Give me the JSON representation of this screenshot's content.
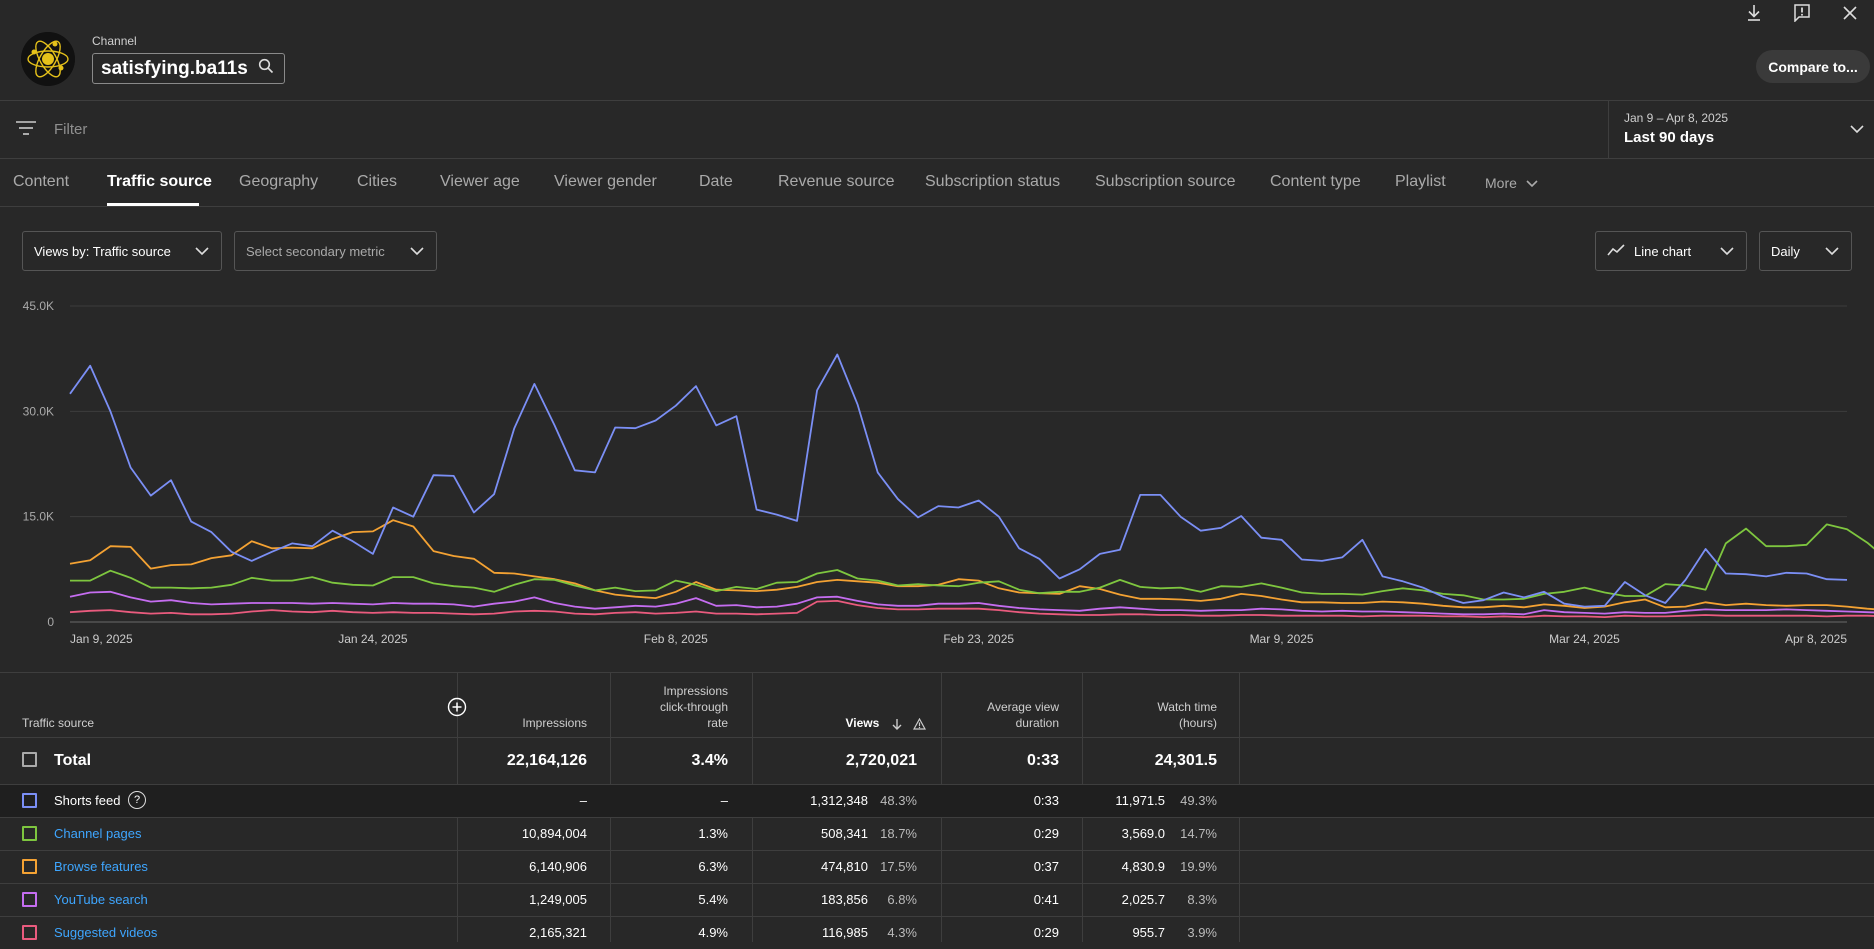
{
  "header": {
    "channel_label": "Channel",
    "channel_name": "satisfying.ba11s",
    "compare_button": "Compare to...",
    "icons": [
      "download-icon",
      "feedback-icon",
      "close-icon"
    ]
  },
  "filter": {
    "placeholder": "Filter"
  },
  "date_range": {
    "range": "Jan 9 – Apr 8, 2025",
    "label": "Last 90 days"
  },
  "tabs": [
    "Content",
    "Traffic source",
    "Geography",
    "Cities",
    "Viewer age",
    "Viewer gender",
    "Date",
    "Revenue source",
    "Subscription status",
    "Subscription source",
    "Content type",
    "Playlist",
    "More"
  ],
  "active_tab": "Traffic source",
  "controls": {
    "primary_metric": "Views by: Traffic source",
    "secondary_metric": "Select secondary metric",
    "chart_type": "Line chart",
    "granularity": "Daily"
  },
  "chart_data": {
    "type": "line",
    "y_ticks": [
      "45.0K",
      "30.0K",
      "15.0K",
      "0"
    ],
    "ylim": [
      0,
      45000
    ],
    "x_ticks": [
      "Jan 9, 2025",
      "Jan 24, 2025",
      "Feb 8, 2025",
      "Feb 23, 2025",
      "Mar 9, 2025",
      "Mar 24, 2025",
      "Apr 8, 2025"
    ],
    "grid": true,
    "series": [
      {
        "name": "Shorts feed",
        "color": "#7b8ff5",
        "values": [
          32500,
          36500,
          30000,
          22000,
          18000,
          20200,
          14300,
          12800,
          10000,
          8700,
          10000,
          11200,
          10800,
          13000,
          11500,
          9700,
          16300,
          15000,
          20900,
          20800,
          15600,
          18200,
          27600,
          33900,
          28000,
          21600,
          21300,
          27700,
          27600,
          28700,
          30800,
          33600,
          28000,
          29300,
          16000,
          15300,
          14400,
          33000,
          38100,
          31000,
          21300,
          17500,
          14900,
          16500,
          16300,
          17300,
          15000,
          10500,
          9000,
          6200,
          7500,
          9700,
          10300,
          18100,
          18100,
          15000,
          13000,
          13400,
          15100,
          12000,
          11700,
          8900,
          8700,
          9200,
          11700,
          6500,
          5800,
          4900,
          3600,
          2700,
          3100,
          4200,
          3500,
          4300,
          2600,
          2200,
          2300,
          5700,
          3800,
          2700,
          6000,
          10400,
          6900,
          6800,
          6500,
          7000,
          6900,
          6100,
          6000
        ]
      },
      {
        "name": "Channel pages",
        "color": "#7ec63f",
        "values": [
          5900,
          5900,
          7300,
          6300,
          4900,
          4900,
          4800,
          4900,
          5300,
          6300,
          5900,
          5900,
          6400,
          5600,
          5300,
          5200,
          6400,
          6400,
          5500,
          5100,
          4900,
          4300,
          5300,
          6100,
          6000,
          5200,
          4500,
          4900,
          4400,
          4500,
          5900,
          5300,
          4400,
          5000,
          4700,
          5600,
          5700,
          6900,
          7400,
          6200,
          5900,
          5200,
          5400,
          5200,
          5100,
          5600,
          5800,
          4600,
          4100,
          4300,
          4300,
          4900,
          6000,
          5000,
          4800,
          4900,
          4300,
          5100,
          5000,
          5500,
          4900,
          4200,
          4000,
          4000,
          3900,
          4400,
          4800,
          4500,
          4000,
          3800,
          3200,
          3200,
          3300,
          4000,
          4300,
          4900,
          4200,
          3700,
          3700,
          5400,
          5200,
          4600,
          11200,
          13300,
          10800,
          10800,
          11000,
          13900,
          13200,
          11300,
          8900
        ]
      },
      {
        "name": "Browse features",
        "color": "#f4a233",
        "values": [
          8300,
          8800,
          10800,
          10700,
          7600,
          8100,
          8200,
          9100,
          9500,
          11500,
          10500,
          10600,
          10500,
          11800,
          12800,
          12900,
          14500,
          13600,
          10100,
          9400,
          9000,
          7000,
          6900,
          6500,
          6100,
          5500,
          4500,
          3900,
          3600,
          3400,
          4300,
          5700,
          4600,
          4500,
          4400,
          4600,
          5000,
          5700,
          6000,
          5800,
          5600,
          5100,
          5100,
          5300,
          6100,
          5900,
          4800,
          4200,
          4100,
          4000,
          5100,
          4700,
          3900,
          3300,
          3300,
          3200,
          3000,
          3300,
          4000,
          3700,
          3200,
          2800,
          2800,
          2700,
          2700,
          2900,
          2800,
          2600,
          2300,
          2100,
          2100,
          2300,
          2100,
          2500,
          2300,
          2000,
          2200,
          2800,
          3200,
          2100,
          2200,
          2800,
          2400,
          2600,
          2400,
          2300,
          2400,
          2400,
          2200,
          1900,
          1700
        ]
      },
      {
        "name": "YouTube search",
        "color": "#c56df0",
        "values": [
          3600,
          4200,
          4300,
          3500,
          2900,
          3100,
          2700,
          2500,
          2600,
          2700,
          2700,
          2700,
          2600,
          2700,
          2600,
          2500,
          2700,
          2600,
          2600,
          2500,
          2200,
          2600,
          2900,
          3500,
          2700,
          2200,
          1900,
          2100,
          2300,
          2200,
          2600,
          3400,
          2300,
          2400,
          2100,
          2200,
          2600,
          3500,
          3600,
          3000,
          2500,
          2300,
          2300,
          2600,
          2600,
          2700,
          2300,
          2000,
          1800,
          1700,
          1600,
          1900,
          2100,
          1900,
          1700,
          1700,
          1600,
          1700,
          1700,
          1900,
          1800,
          1600,
          1500,
          1600,
          1500,
          1500,
          1400,
          1300,
          1200,
          1100,
          1100,
          1200,
          1100,
          1700,
          1400,
          1300,
          1200,
          1400,
          1300,
          1300,
          1600,
          1800,
          1700,
          1700,
          1700,
          1800,
          1700,
          1600,
          1500,
          1400,
          1300
        ]
      },
      {
        "name": "Suggested videos",
        "color": "#ea5b7e",
        "values": [
          1400,
          1600,
          1700,
          1400,
          1200,
          1300,
          1100,
          1100,
          1200,
          1500,
          1700,
          1500,
          1400,
          1600,
          1400,
          1300,
          1400,
          1300,
          1300,
          1200,
          1100,
          1200,
          1500,
          1600,
          1500,
          1200,
          1100,
          1300,
          1400,
          1200,
          1300,
          1500,
          1200,
          1200,
          1100,
          1200,
          1300,
          2900,
          3000,
          2400,
          2000,
          1800,
          1800,
          1900,
          1900,
          1900,
          1700,
          1400,
          1200,
          1100,
          1000,
          1000,
          1100,
          1100,
          1000,
          1000,
          900,
          900,
          1000,
          1000,
          900,
          900,
          900,
          900,
          800,
          900,
          900,
          900,
          800,
          800,
          700,
          800,
          700,
          900,
          800,
          800,
          700,
          900,
          800,
          800,
          900,
          1000,
          900,
          900,
          900,
          900,
          900,
          800,
          900,
          900,
          800
        ]
      }
    ]
  },
  "table": {
    "headers": {
      "source": "Traffic source",
      "impressions": "Impressions",
      "ctr": [
        "Impressions",
        "click-through",
        "rate"
      ],
      "views": "Views",
      "avd": [
        "Average view",
        "duration"
      ],
      "watch": [
        "Watch time",
        "(hours)"
      ]
    },
    "total": {
      "label": "Total",
      "impressions": "22,164,126",
      "ctr": "3.4%",
      "views": "2,720,021",
      "avd": "0:33",
      "watch": "24,301.5"
    },
    "rows": [
      {
        "label": "Shorts feed",
        "color": "#7b8ff5",
        "impressions": "–",
        "ctr": "–",
        "views": "1,312,348",
        "views_pct": "48.3%",
        "avd": "0:33",
        "watch": "11,971.5",
        "watch_pct": "49.3%",
        "link": false,
        "help": "?"
      },
      {
        "label": "Channel pages",
        "color": "#7ec63f",
        "impressions": "10,894,004",
        "ctr": "1.3%",
        "views": "508,341",
        "views_pct": "18.7%",
        "avd": "0:29",
        "watch": "3,569.0",
        "watch_pct": "14.7%",
        "link": true
      },
      {
        "label": "Browse features",
        "color": "#f4a233",
        "impressions": "6,140,906",
        "ctr": "6.3%",
        "views": "474,810",
        "views_pct": "17.5%",
        "avd": "0:37",
        "watch": "4,830.9",
        "watch_pct": "19.9%",
        "link": true
      },
      {
        "label": "YouTube search",
        "color": "#c56df0",
        "impressions": "1,249,005",
        "ctr": "5.4%",
        "views": "183,856",
        "views_pct": "6.8%",
        "avd": "0:41",
        "watch": "2,025.7",
        "watch_pct": "8.3%",
        "link": true
      },
      {
        "label": "Suggested videos",
        "color": "#ea5b7e",
        "impressions": "2,165,321",
        "ctr": "4.9%",
        "views": "116,985",
        "views_pct": "4.3%",
        "avd": "0:29",
        "watch": "955.7",
        "watch_pct": "3.9%",
        "link": true
      }
    ]
  }
}
